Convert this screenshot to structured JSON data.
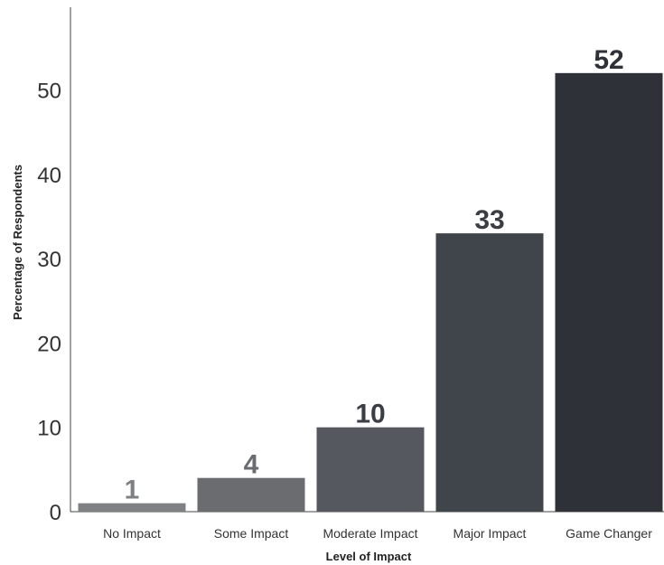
{
  "chart_data": {
    "type": "bar",
    "title": "",
    "xlabel": "Level of Impact",
    "ylabel": "Percentage of Respondents",
    "categories": [
      "No Impact",
      "Some Impact",
      "Moderate Impact",
      "Major Impact",
      "Game Changer"
    ],
    "values": [
      1,
      4,
      10,
      33,
      52
    ],
    "value_labels": [
      "1",
      "4",
      "10",
      "33",
      "52"
    ],
    "yticks": [
      0,
      10,
      20,
      30,
      40,
      50
    ],
    "ytick_labels": [
      "0",
      "10",
      "20",
      "30",
      "40",
      "50"
    ],
    "ylim": [
      0,
      60
    ],
    "grid": false,
    "legend": "none",
    "colors": [
      "#7f8084",
      "#6a6c70",
      "#55585e",
      "#40444b",
      "#2e3238"
    ],
    "value_label_colors": [
      "#7f8084",
      "#6a6c70",
      "#3a3d43",
      "#3a3d43",
      "#2e3238"
    ]
  }
}
